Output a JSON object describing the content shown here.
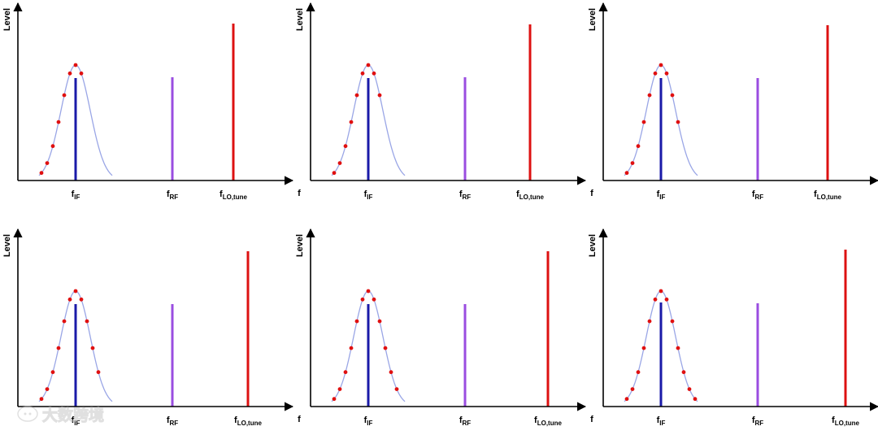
{
  "labels": {
    "y_axis": "Level",
    "x_axis": "f",
    "f": "f",
    "if_sub": "IF",
    "rf_sub": "RF",
    "lo_sub": "LO,tune"
  },
  "watermark": {
    "text": "大数跨境",
    "icon": "speech-bubble-logo-icon"
  },
  "colors": {
    "if_line": "#1a1aa8",
    "rf_line": "#9a4de0",
    "lo_line": "#dd1111",
    "curve": "#9aa6e6",
    "dots": "#e01010",
    "axis": "#000000"
  },
  "chart_data": [
    {
      "panel": 1,
      "type": "spectrum",
      "lines": [
        {
          "name": "fIF",
          "level": 0.66
        },
        {
          "name": "fRF",
          "level": 0.66
        },
        {
          "name": "fLO,tune",
          "level": 1.0
        }
      ],
      "sweep_points": [
        0.0,
        0.04,
        0.17,
        0.32,
        0.48,
        0.62,
        0.72,
        0.75
      ]
    },
    {
      "panel": 2,
      "type": "spectrum",
      "lines": [
        {
          "name": "fIF",
          "level": 0.66
        },
        {
          "name": "fRF",
          "level": 0.66
        },
        {
          "name": "fLO,tune",
          "level": 1.0
        }
      ],
      "sweep_points": [
        0.0,
        0.05,
        0.19,
        0.34,
        0.5,
        0.63,
        0.72,
        0.74,
        0.7
      ]
    },
    {
      "panel": 3,
      "type": "spectrum",
      "lines": [
        {
          "name": "fIF",
          "level": 0.66
        },
        {
          "name": "fRF",
          "level": 0.66
        },
        {
          "name": "fLO,tune",
          "level": 1.0
        }
      ],
      "sweep_points": [
        0.0,
        0.05,
        0.18,
        0.33,
        0.5,
        0.63,
        0.72,
        0.74,
        0.7,
        0.5
      ]
    },
    {
      "panel": 4,
      "type": "spectrum",
      "lines": [
        {
          "name": "fIF",
          "level": 0.66
        },
        {
          "name": "fRF",
          "level": 0.66
        },
        {
          "name": "fLO,tune",
          "level": 1.0
        }
      ],
      "sweep_points": [
        0.0,
        0.05,
        0.18,
        0.33,
        0.5,
        0.63,
        0.72,
        0.74,
        0.69,
        0.5,
        0.33
      ]
    },
    {
      "panel": 5,
      "type": "spectrum",
      "lines": [
        {
          "name": "fIF",
          "level": 0.66
        },
        {
          "name": "fRF",
          "level": 0.66
        },
        {
          "name": "fLO,tune",
          "level": 1.0
        }
      ],
      "sweep_points": [
        0.0,
        0.05,
        0.18,
        0.33,
        0.49,
        0.63,
        0.72,
        0.74,
        0.69,
        0.5,
        0.33,
        0.16
      ]
    },
    {
      "panel": 6,
      "type": "spectrum",
      "lines": [
        {
          "name": "fIF",
          "level": 0.66
        },
        {
          "name": "fRF",
          "level": 0.66
        },
        {
          "name": "fLO,tune",
          "level": 1.0
        }
      ],
      "sweep_points": [
        0.0,
        0.05,
        0.18,
        0.33,
        0.5,
        0.63,
        0.72,
        0.74,
        0.69,
        0.5,
        0.33,
        0.2,
        0.07
      ]
    }
  ]
}
